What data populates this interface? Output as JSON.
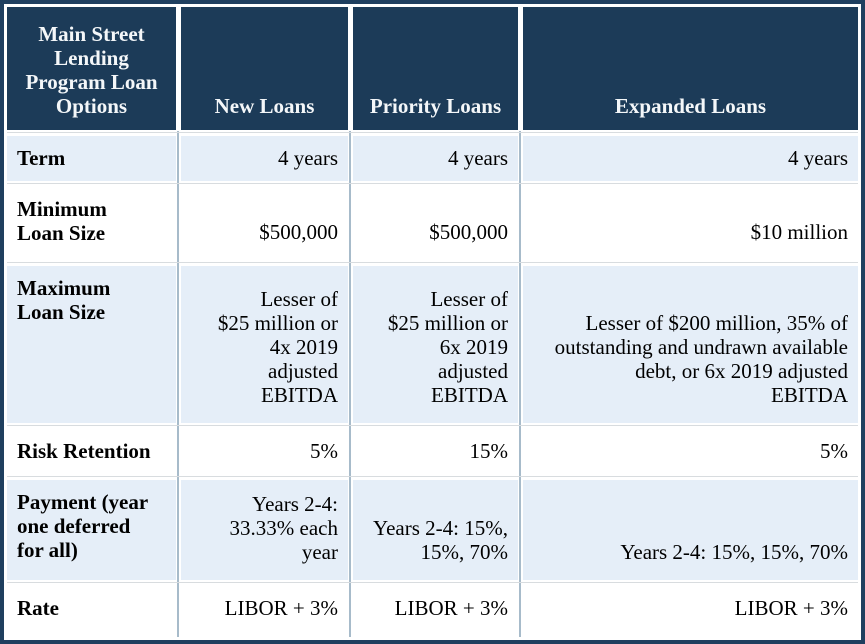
{
  "table": {
    "title": "Main Street Lending Program Loan Options",
    "header": {
      "corner": "Main Street\nLending\nProgram Loan\nOptions",
      "columns": [
        "New Loans",
        "Priority Loans",
        "Expanded Loans"
      ]
    },
    "rows": [
      {
        "label": "Term",
        "new": "4 years",
        "priority": "4 years",
        "expanded": "4 years"
      },
      {
        "label": "Minimum\nLoan Size",
        "new": "$500,000",
        "priority": "$500,000",
        "expanded": "$10 million"
      },
      {
        "label": "Maximum\nLoan Size",
        "new": "Lesser of\n$25 million or\n4x 2019\nadjusted\nEBITDA",
        "priority": "Lesser of\n$25 million or\n6x 2019\nadjusted\nEBITDA",
        "expanded": "Lesser of $200 million, 35% of\noutstanding and undrawn available\ndebt, or 6x 2019 adjusted\nEBITDA"
      },
      {
        "label": "Risk Retention",
        "new": "5%",
        "priority": "15%",
        "expanded": "5%"
      },
      {
        "label": "Payment (year\none deferred\nfor all)",
        "new": "Years 2-4:\n33.33% each\nyear",
        "priority": "Years 2-4: 15%,\n15%, 70%",
        "expanded": "Years 2-4: 15%, 15%, 70%"
      },
      {
        "label": "Rate",
        "new": "LIBOR + 3%",
        "priority": "LIBOR + 3%",
        "expanded": "LIBOR + 3%"
      }
    ],
    "colors": {
      "header_bg": "#1c3b58",
      "header_text": "#f4f7f9",
      "row_shaded_bg": "#e5eef8",
      "row_plain_bg": "#ffffff",
      "outer_border": "#1f3f5f",
      "column_divider": "#a7bbca",
      "row_divider": "#d8dcdf",
      "body_text": "#000000"
    }
  }
}
